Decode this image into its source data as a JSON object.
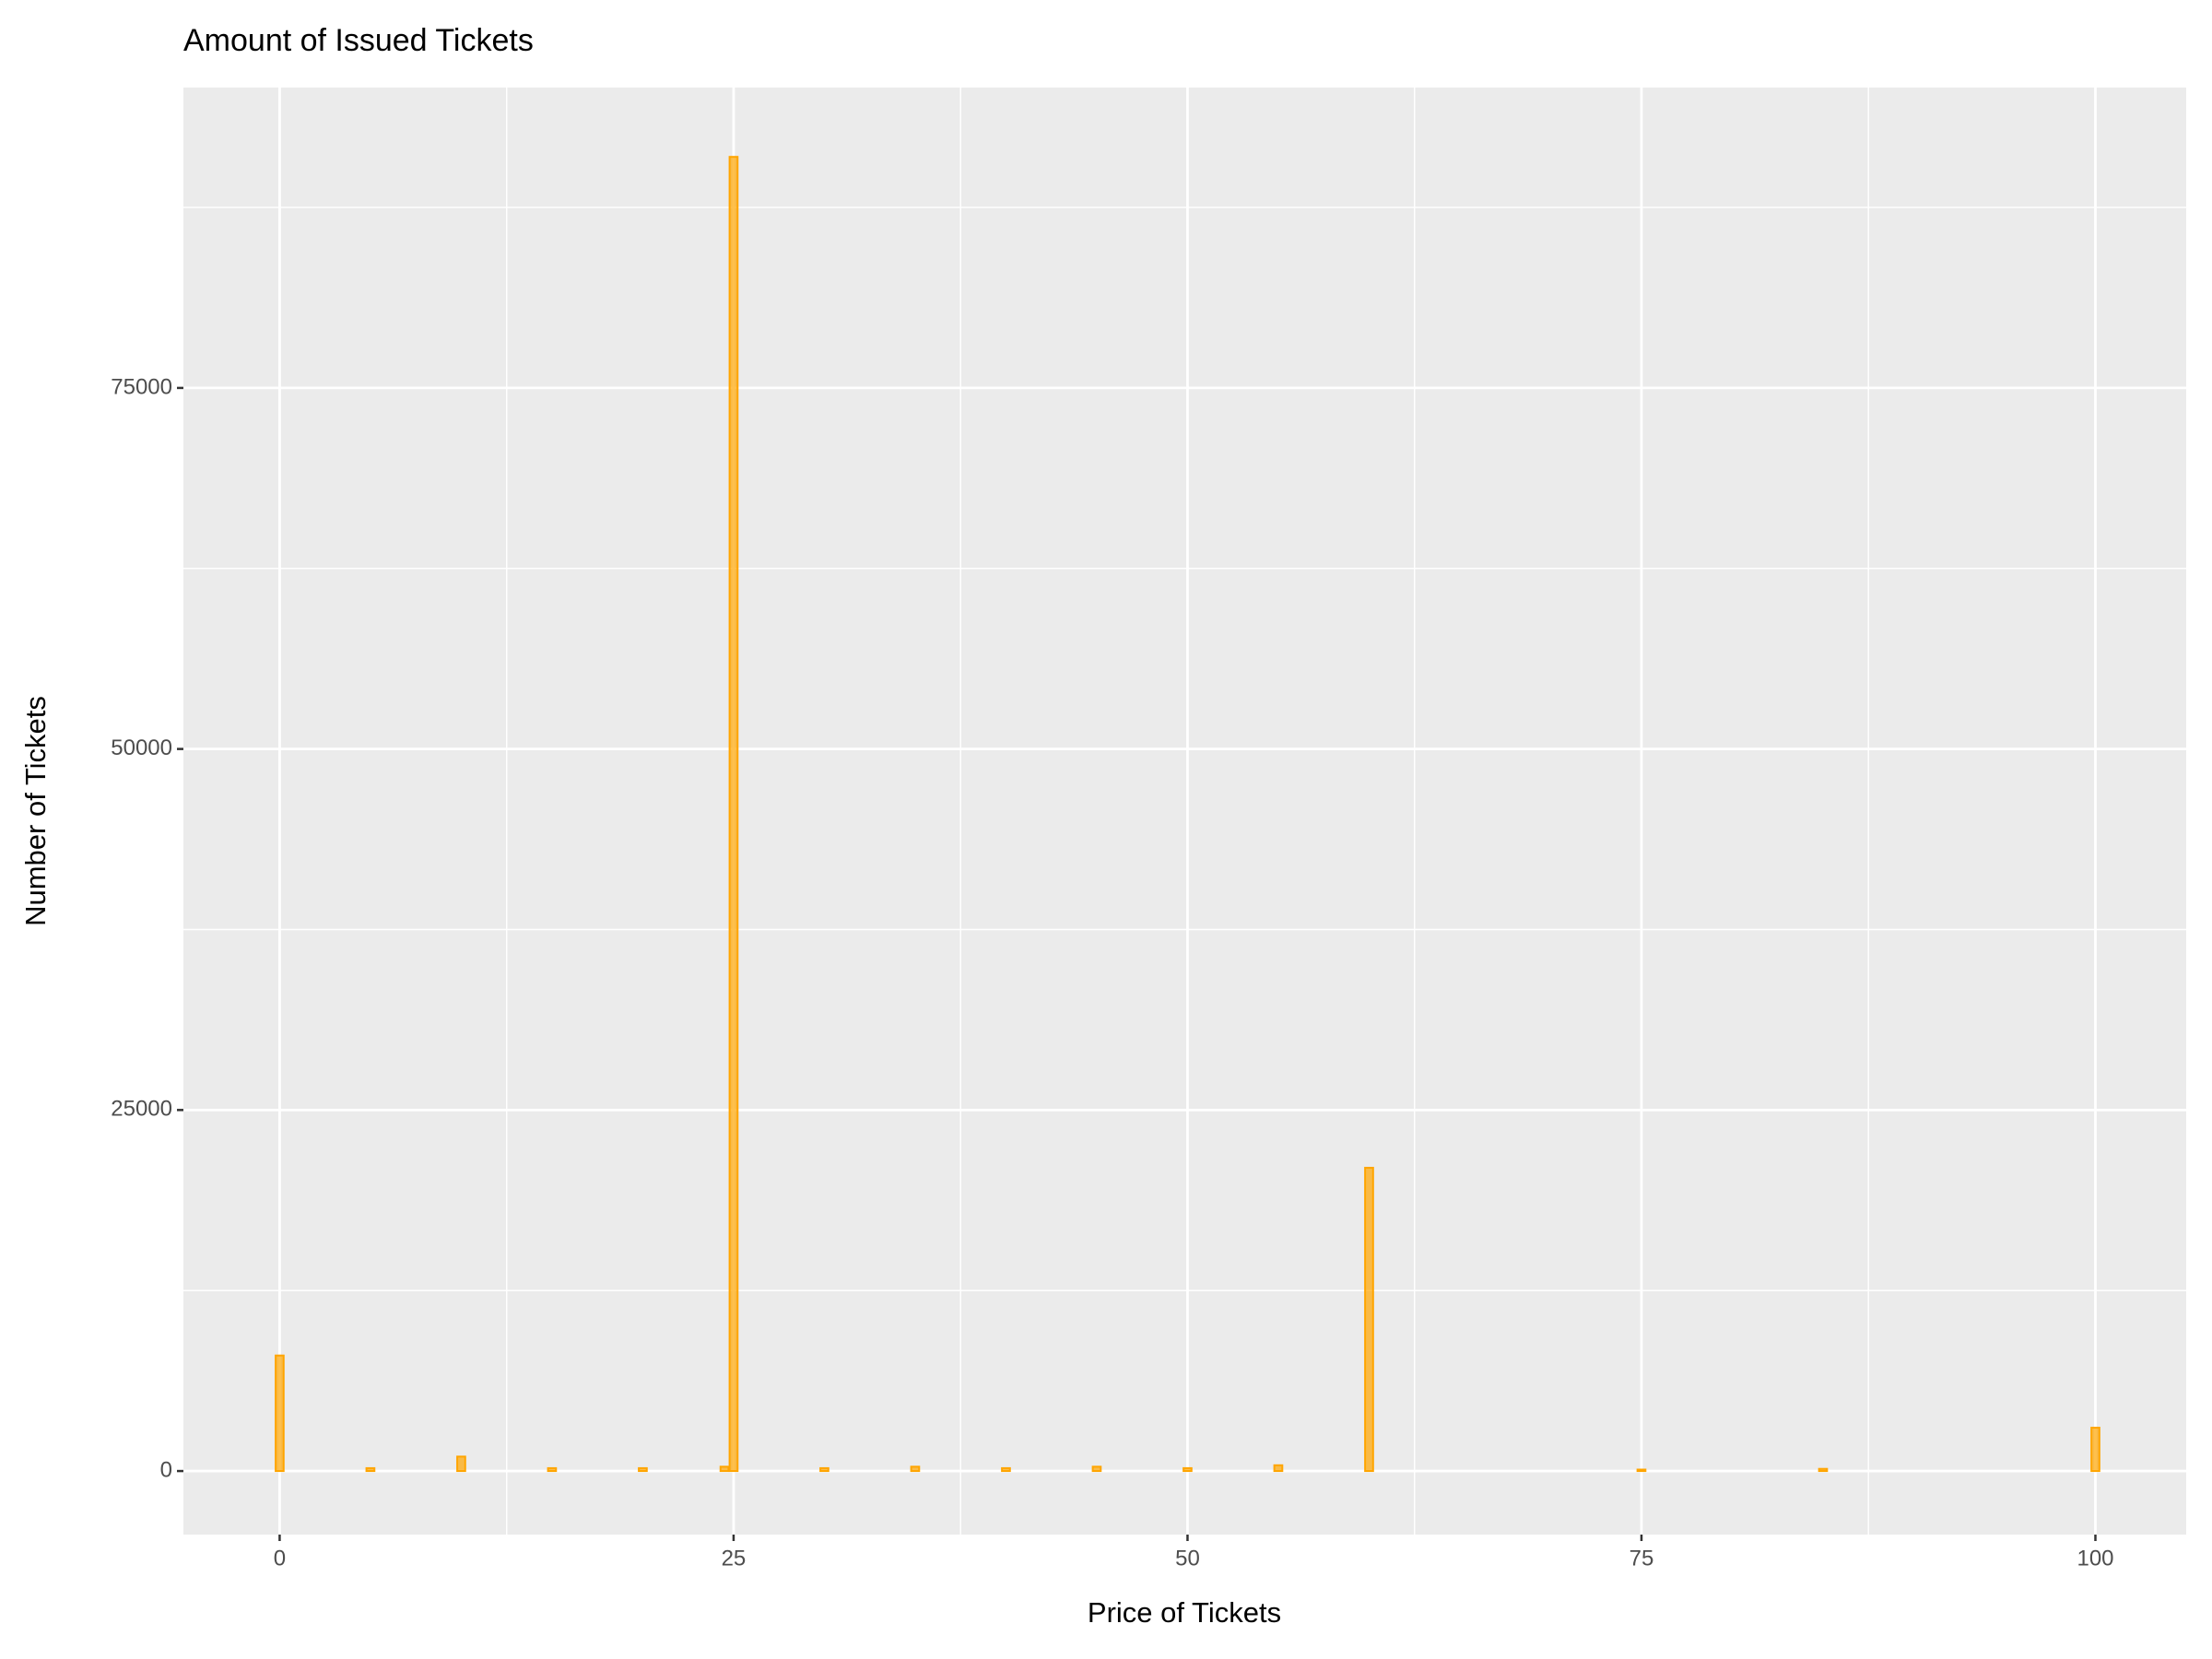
{
  "chart_data": {
    "type": "bar",
    "title": "Amount of Issued Tickets",
    "x_label": "Price of Tickets",
    "y_label": "Number of Tickets",
    "x": [
      0,
      5,
      10,
      15,
      20,
      24.5,
      25,
      30,
      35,
      40,
      45,
      50,
      55,
      60,
      75,
      85,
      100
    ],
    "values": [
      8000,
      200,
      1000,
      200,
      200,
      300,
      91000,
      200,
      300,
      200,
      300,
      200,
      400,
      21000,
      100,
      150,
      3000
    ],
    "color": "#ffa500",
    "xlim": [
      -5.3,
      105
    ],
    "xticks": [
      0,
      25,
      50,
      75,
      100
    ],
    "ylim": [
      -4400,
      95800
    ],
    "yticks": [
      0,
      25000,
      50000,
      75000
    ],
    "grid": true
  }
}
